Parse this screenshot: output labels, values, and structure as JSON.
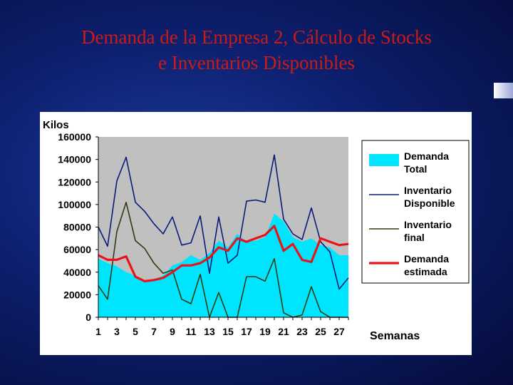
{
  "slide": {
    "title_line1": "Demanda de la Empresa 2, Cálculo de Stocks",
    "title_line2": "e Inventarios Disponibles",
    "title_color": "#cc1a14",
    "background_color": "#0d1f6e"
  },
  "chart_data": {
    "type": "area+line",
    "ylabel": "Kilos",
    "xlabel": "Semanas",
    "ylim": [
      0,
      160000
    ],
    "yticks": [
      0,
      20000,
      40000,
      60000,
      80000,
      100000,
      120000,
      140000,
      160000
    ],
    "x": [
      1,
      2,
      3,
      4,
      5,
      6,
      7,
      8,
      9,
      10,
      11,
      12,
      13,
      14,
      15,
      16,
      17,
      18,
      19,
      20,
      21,
      22,
      23,
      24,
      25,
      26,
      27,
      28
    ],
    "xtick_labels": [
      "1",
      "3",
      "5",
      "7",
      "9",
      "11",
      "13",
      "15",
      "17",
      "19",
      "21",
      "23",
      "25",
      "27"
    ],
    "grid": false,
    "plot_background": "#c0c0c0",
    "legend_position": "right",
    "series": [
      {
        "name": "Demanda Total",
        "kind": "area",
        "color": "#00e5ff",
        "values": [
          52000,
          48000,
          45000,
          40000,
          37000,
          32000,
          33000,
          37000,
          46000,
          49000,
          55000,
          51000,
          57000,
          68000,
          62000,
          74000,
          67000,
          68000,
          71000,
          92000,
          85000,
          71000,
          67000,
          70000,
          64000,
          62000,
          55000,
          55000
        ]
      },
      {
        "name": "Inventario Disponible",
        "kind": "line",
        "color": "#0a1a7a",
        "values": [
          80000,
          63000,
          121000,
          142000,
          102000,
          94000,
          83000,
          74000,
          89000,
          64000,
          66000,
          90000,
          39000,
          89000,
          48000,
          55000,
          103000,
          104000,
          102000,
          144000,
          87000,
          74000,
          69000,
          97000,
          67000,
          58000,
          25000,
          35000
        ]
      },
      {
        "name": "Inventario final",
        "kind": "line",
        "color": "#2e3d10",
        "values": [
          28000,
          16000,
          76000,
          102000,
          68000,
          61000,
          48000,
          39000,
          42000,
          16000,
          12000,
          38000,
          0,
          22000,
          0,
          0,
          36000,
          36000,
          32000,
          52000,
          4000,
          0,
          2000,
          27000,
          5000,
          0,
          0,
          0
        ]
      },
      {
        "name": "Demanda estimada",
        "kind": "line",
        "color": "#e8141a",
        "values": [
          55000,
          51000,
          51000,
          54000,
          36000,
          32000,
          33000,
          35000,
          40000,
          46000,
          46000,
          48000,
          53000,
          62000,
          59000,
          70000,
          67000,
          70000,
          73000,
          81000,
          59000,
          65000,
          51000,
          49000,
          70000,
          67000,
          64000,
          65000
        ]
      }
    ]
  }
}
